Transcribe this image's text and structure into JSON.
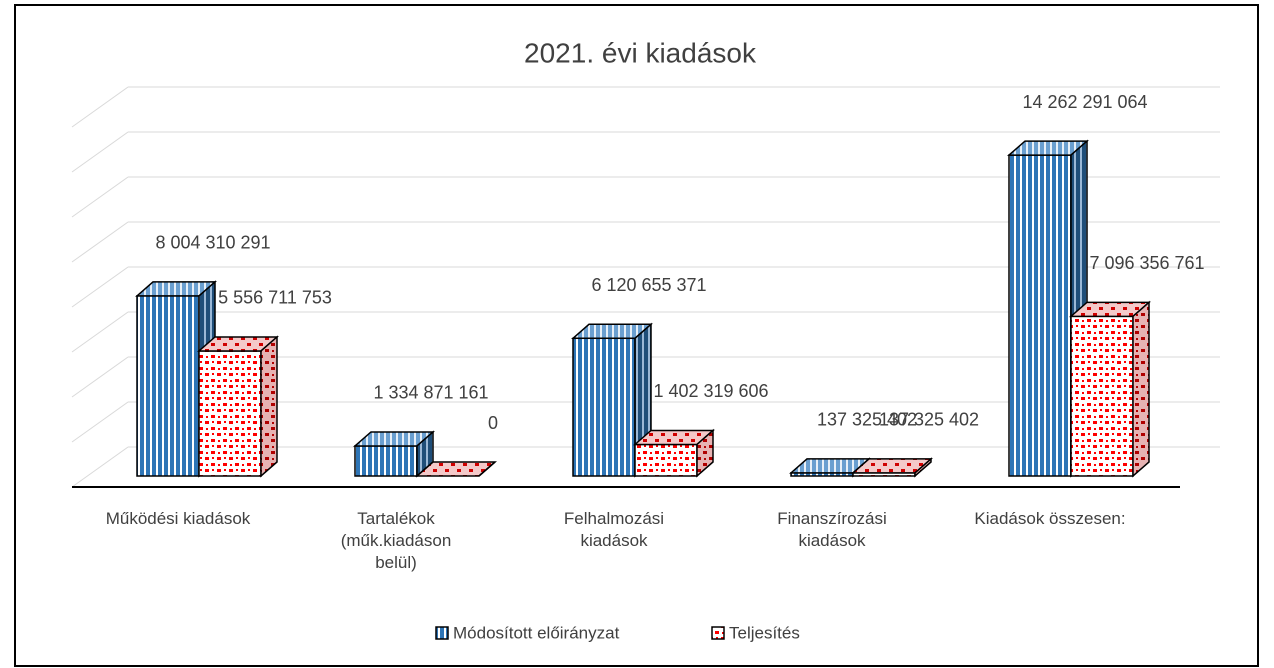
{
  "chart_data": {
    "type": "bar3d",
    "title": "2021. évi kiadások",
    "categories": [
      "Működési kiadások",
      "Tartalékok\n(műk.kiadáson\nbelül)",
      "Felhalmozási\nkiadások",
      "Finanszírozási\nkiadások",
      "Kiadások összesen:"
    ],
    "series": [
      {
        "name": "Módosított előirányzat",
        "color": "#2e75b6",
        "values": [
          8004310291,
          1334871161,
          6120655371,
          137325402,
          14262291064
        ],
        "value_labels": [
          "8 004 310 291",
          "1 334 871 161",
          "6 120 655 371",
          "137 325 402",
          "14 262 291 064"
        ]
      },
      {
        "name": "Teljesítés",
        "color": "#ff0000",
        "values": [
          5556711753,
          0,
          1402319606,
          137325402,
          7096356761
        ],
        "value_labels": [
          "5 556 711 753",
          "0",
          "1 402 319 606",
          "137 325 402",
          "7 096 356 761"
        ]
      }
    ],
    "ylim": [
      0,
      16000000000
    ],
    "yticks": [
      0,
      2000000000,
      4000000000,
      6000000000,
      8000000000,
      10000000000,
      12000000000,
      14000000000,
      16000000000
    ],
    "grid": true,
    "legend": "bottom"
  }
}
